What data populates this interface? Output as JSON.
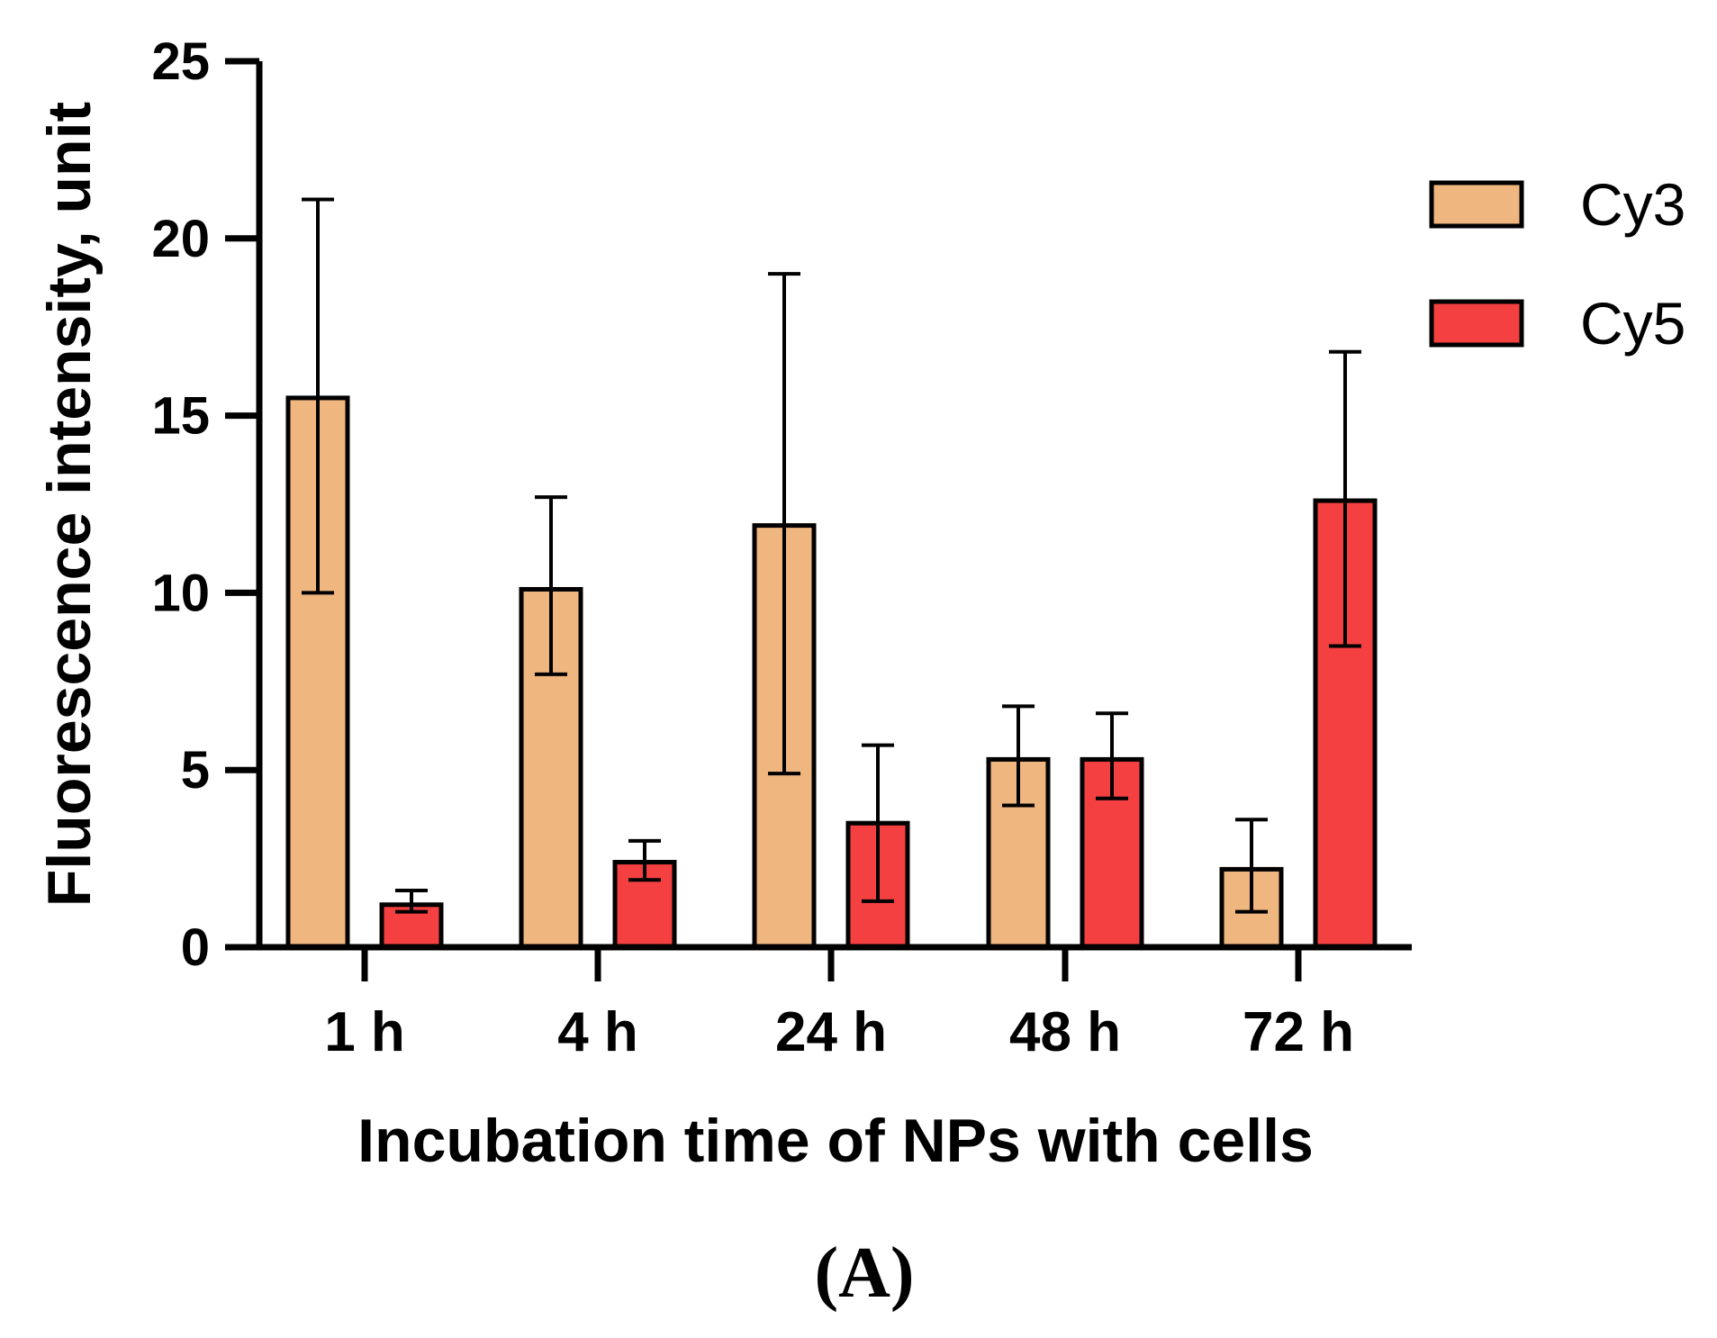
{
  "chart_data": {
    "type": "bar",
    "title": "",
    "panel_label": "(A)",
    "xlabel": "Incubation time of NPs with cells",
    "ylabel": "Fluorescence intensity, unit",
    "categories": [
      "1 h",
      "4 h",
      "24 h",
      "48 h",
      "72 h"
    ],
    "ylim": [
      0,
      25
    ],
    "yticks": [
      0,
      5,
      10,
      15,
      20,
      25
    ],
    "grid": false,
    "legend_position": "top-right",
    "series": [
      {
        "name": "Cy3",
        "color": "#F0B67F",
        "values": [
          15.5,
          10.1,
          11.9,
          5.3,
          2.2
        ],
        "error_low": [
          10.0,
          7.7,
          4.9,
          4.0,
          1.0
        ],
        "error_high": [
          21.1,
          12.7,
          19.0,
          6.8,
          3.6
        ]
      },
      {
        "name": "Cy5",
        "color": "#F44040",
        "values": [
          1.2,
          2.4,
          3.5,
          5.3,
          12.6
        ],
        "error_low": [
          1.0,
          1.9,
          1.3,
          4.2,
          8.5
        ],
        "error_high": [
          1.6,
          3.0,
          5.7,
          6.6,
          16.8
        ]
      }
    ]
  }
}
